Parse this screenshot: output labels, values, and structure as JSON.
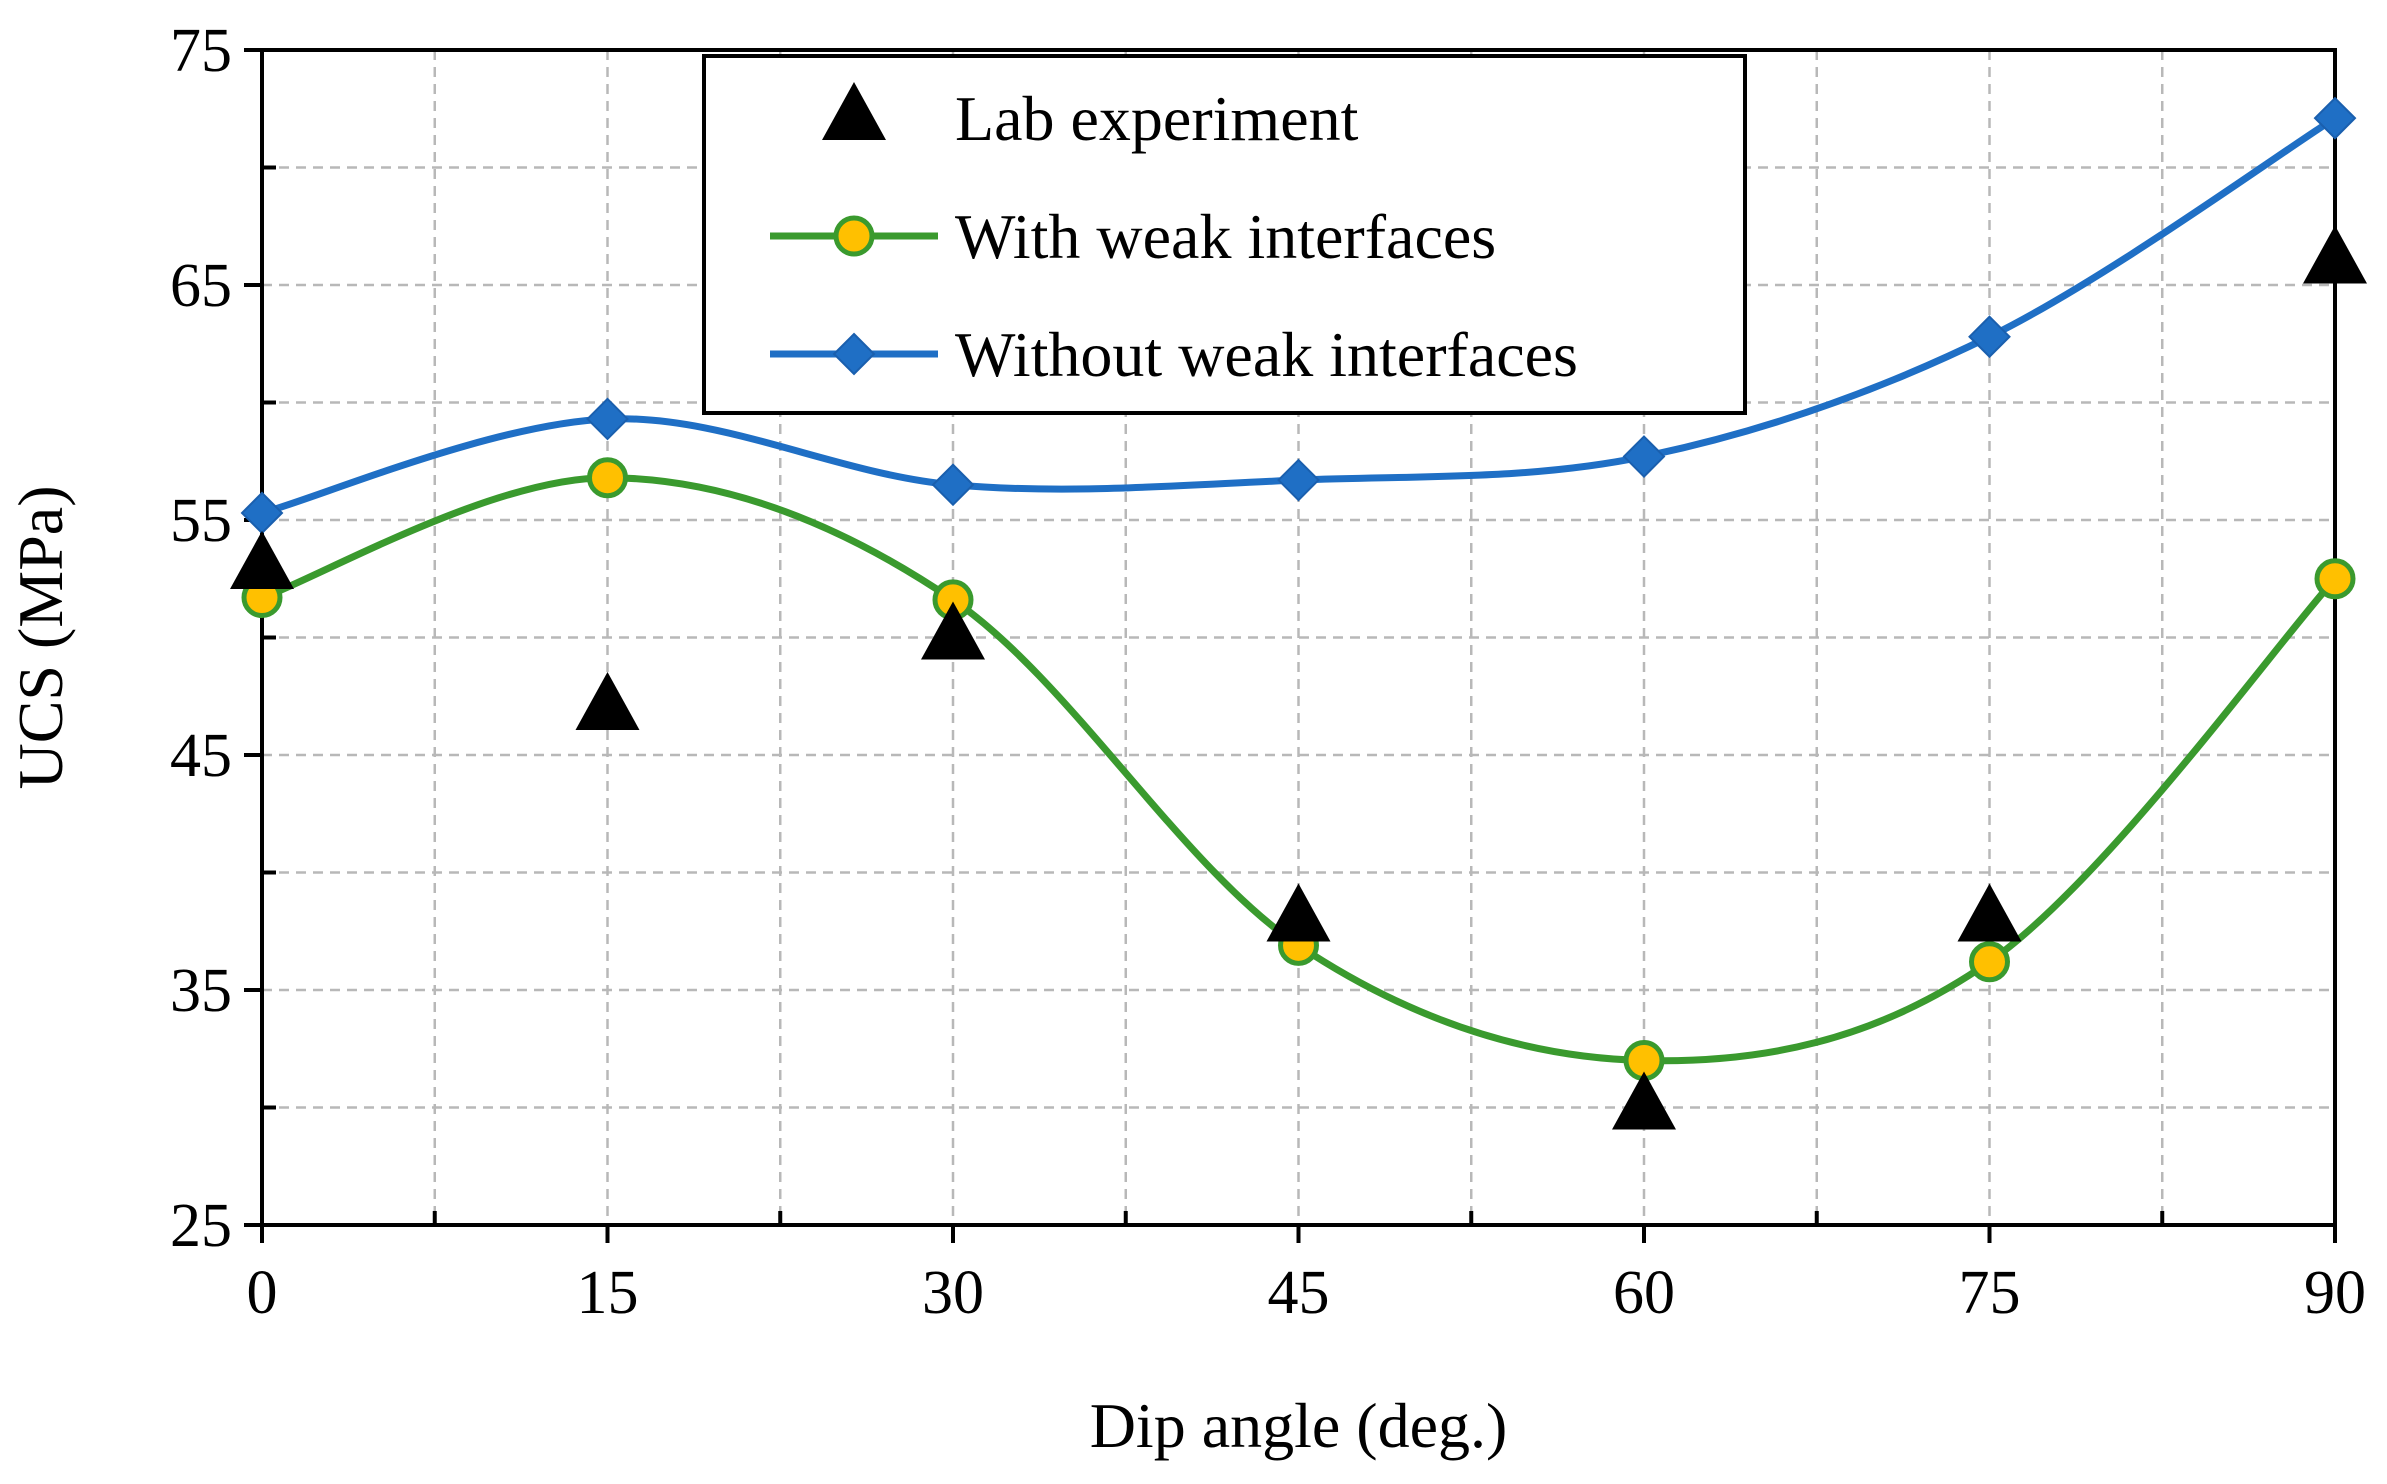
{
  "chart_data": {
    "type": "line",
    "title": "",
    "xlabel": "Dip angle (deg.)",
    "ylabel": "UCS (MPa)",
    "xlim": [
      0,
      90
    ],
    "ylim": [
      25,
      75
    ],
    "x_ticks": [
      0,
      15,
      30,
      45,
      60,
      75,
      90
    ],
    "y_ticks": [
      25,
      35,
      45,
      55,
      65,
      75
    ],
    "grid": true,
    "legend_position": "top",
    "x": [
      0,
      15,
      30,
      45,
      60,
      75,
      90
    ],
    "series": [
      {
        "name": "Lab experiment",
        "marker": "triangle",
        "line": false,
        "color": "#000000",
        "values": [
          53,
          47,
          50,
          38,
          30,
          38,
          66
        ]
      },
      {
        "name": "With weak interfaces",
        "marker": "circle",
        "line": true,
        "color": "#3a9a2e",
        "marker_fill": "#ffc000",
        "values": [
          51.7,
          56.8,
          51.6,
          36.9,
          32.0,
          36.2,
          52.5
        ]
      },
      {
        "name": "Without weak interfaces",
        "marker": "diamond",
        "line": true,
        "color": "#1f6fc5",
        "values": [
          55.3,
          59.3,
          56.5,
          56.7,
          57.7,
          62.8,
          72.1
        ]
      }
    ]
  }
}
